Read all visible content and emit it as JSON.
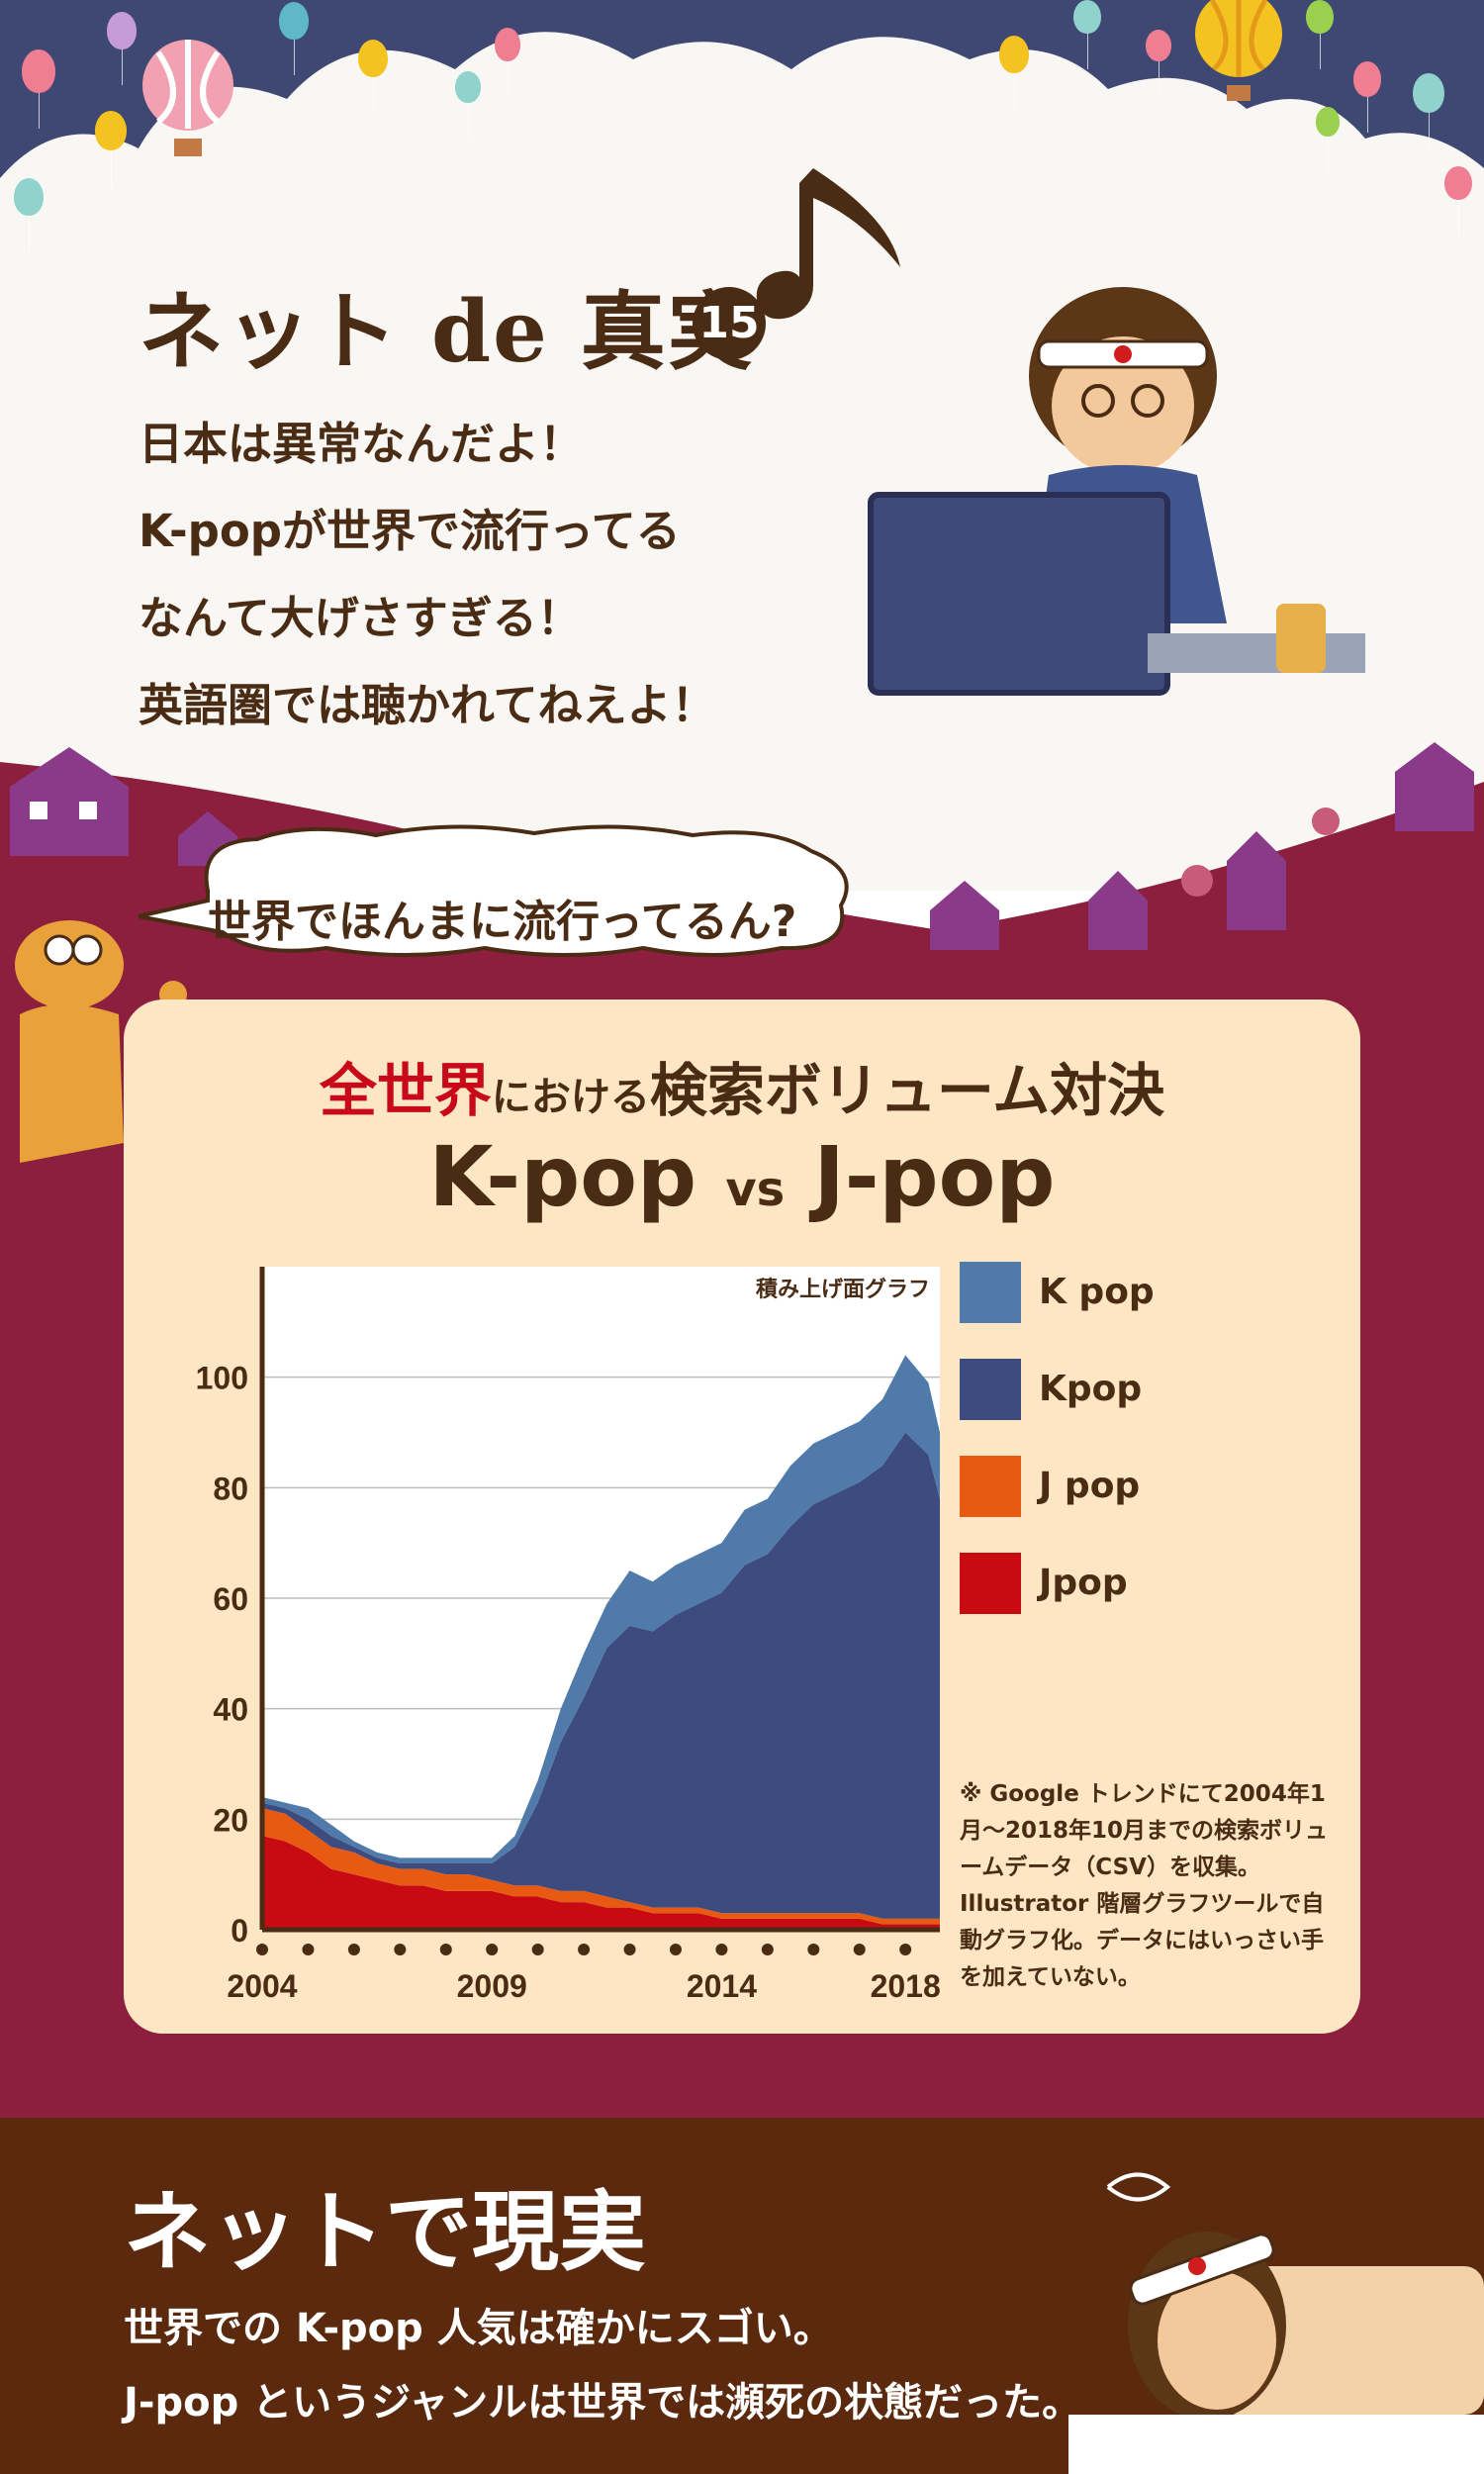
{
  "header": {
    "series_title": "ネット de 真実",
    "episode_number": "15",
    "claims": [
      "日本は異常なんだよ！",
      "K-popが世界で流行ってる",
      "なんて大げさすぎる！",
      "英語圏では聴かれてねえよ！"
    ]
  },
  "question_bubble": "世界でほんまに流行ってるん?",
  "panel": {
    "headline_red": "全世界",
    "headline_small": "における",
    "headline_rest": "検索ボリューム対決",
    "versus_left": "K-pop",
    "versus_mid": "vs",
    "versus_right": "J-pop",
    "source_note": "※ Google トレンドにて2004年1月～2018年10月までの検索ボリュームデータ（CSV）を収集。Illustrator 階層グラフツールで自動グラフ化。データにはいっさい手を加えていない。"
  },
  "colors": {
    "K pop": "#4f7aaa",
    "Kpop": "#3e4b7e",
    "J pop": "#e85a12",
    "Jpop": "#c80a12",
    "maroon": "#8c1f3d",
    "panel": "#fce6c3",
    "brown": "#4a2b14"
  },
  "chart_data": {
    "type": "area",
    "stacked": true,
    "subtitle": "積み上げ面グラフ",
    "x_tick_labels": [
      "2004",
      "2009",
      "2014",
      "2018"
    ],
    "y_ticks": [
      0,
      20,
      40,
      60,
      80,
      100
    ],
    "ylim": [
      0,
      120
    ],
    "xlim": [
      2004.0,
      2018.75
    ],
    "grid": true,
    "legend_position": "right",
    "x": [
      2004.0,
      2004.5,
      2005.0,
      2005.5,
      2006.0,
      2006.5,
      2007.0,
      2007.5,
      2008.0,
      2008.5,
      2009.0,
      2009.5,
      2010.0,
      2010.5,
      2011.0,
      2011.5,
      2012.0,
      2012.5,
      2013.0,
      2013.5,
      2014.0,
      2014.5,
      2015.0,
      2015.5,
      2016.0,
      2016.5,
      2017.0,
      2017.5,
      2018.0,
      2018.5,
      2018.75
    ],
    "series": [
      {
        "name": "Jpop",
        "values": [
          17,
          16,
          14,
          11,
          10,
          9,
          8,
          8,
          7,
          7,
          7,
          6,
          6,
          5,
          5,
          4,
          4,
          3,
          3,
          3,
          2,
          2,
          2,
          2,
          2,
          2,
          2,
          1,
          1,
          1,
          1
        ]
      },
      {
        "name": "J pop",
        "values": [
          5,
          5,
          4,
          4,
          4,
          3,
          3,
          3,
          3,
          3,
          2,
          2,
          2,
          2,
          2,
          2,
          1,
          1,
          1,
          1,
          1,
          1,
          1,
          1,
          1,
          1,
          1,
          1,
          1,
          1,
          1
        ]
      },
      {
        "name": "Kpop",
        "values": [
          1,
          1,
          2,
          2,
          1,
          1,
          1,
          1,
          2,
          2,
          3,
          7,
          15,
          27,
          35,
          45,
          50,
          50,
          53,
          55,
          58,
          63,
          65,
          70,
          74,
          76,
          78,
          82,
          88,
          84,
          76
        ]
      },
      {
        "name": "K pop",
        "values": [
          1,
          1,
          2,
          2,
          1,
          1,
          1,
          1,
          1,
          1,
          1,
          2,
          4,
          6,
          8,
          8,
          10,
          9,
          9,
          9,
          9,
          10,
          10,
          11,
          11,
          11,
          11,
          12,
          14,
          13,
          12
        ]
      }
    ]
  },
  "footer": {
    "title": "ネットで現実",
    "line1": "世界での K-pop 人気は確かにスゴい。",
    "line2": "J-pop というジャンルは世界では瀕死の状態だった。"
  }
}
